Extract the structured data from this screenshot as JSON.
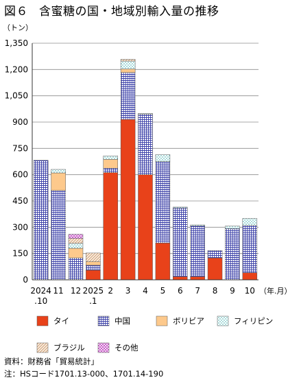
{
  "title": {
    "figure": "図６",
    "text": "含蜜糖の国・地域別輸入量の推移"
  },
  "chart_data": {
    "type": "bar",
    "stacked": true,
    "unit_label": "（トン）",
    "x_unit_label": "（年.月）",
    "ylim": [
      0,
      1350
    ],
    "yticks": [
      0,
      150,
      300,
      450,
      600,
      750,
      900,
      1050,
      1200,
      1350
    ],
    "ytick_labels": [
      "0",
      "150",
      "300",
      "450",
      "600",
      "750",
      "900",
      "1,050",
      "1,200",
      "1,350"
    ],
    "grid": true,
    "categories": [
      [
        "2024",
        ".10"
      ],
      [
        "11"
      ],
      [
        "12"
      ],
      [
        "2025",
        ".1"
      ],
      [
        "2"
      ],
      [
        "3"
      ],
      [
        "4"
      ],
      [
        "5"
      ],
      [
        "6"
      ],
      [
        "7"
      ],
      [
        "8"
      ],
      [
        "9"
      ],
      [
        "10"
      ]
    ],
    "series": [
      {
        "name": "タイ",
        "color": "#e8421a",
        "pattern": "solid",
        "values": [
          0,
          0,
          0,
          55,
          612,
          915,
          600,
          210,
          18,
          18,
          125,
          0,
          40
        ]
      },
      {
        "name": "中国",
        "color": "#3a3fa8",
        "pattern": "grid",
        "values": [
          682,
          510,
          125,
          28,
          25,
          268,
          345,
          465,
          392,
          290,
          42,
          292,
          270
        ]
      },
      {
        "name": "ボリビア",
        "color": "#fdc98c",
        "pattern": "solid",
        "values": [
          0,
          100,
          55,
          20,
          50,
          20,
          0,
          0,
          0,
          0,
          0,
          0,
          0
        ]
      },
      {
        "name": "フィリピン",
        "color": "#2aa7a7",
        "pattern": "dots",
        "values": [
          0,
          20,
          28,
          0,
          20,
          45,
          5,
          40,
          5,
          5,
          0,
          15,
          40
        ]
      },
      {
        "name": "ブラジル",
        "color": "#c8956a",
        "pattern": "diagonal",
        "values": [
          0,
          0,
          28,
          50,
          0,
          10,
          0,
          0,
          0,
          0,
          0,
          0,
          0
        ]
      },
      {
        "name": "その他",
        "color": "#c040c0",
        "pattern": "crosshatch",
        "values": [
          0,
          0,
          24,
          0,
          0,
          0,
          0,
          0,
          0,
          0,
          0,
          0,
          0
        ]
      }
    ]
  },
  "source": {
    "line1": "資料：財務省「貿易統計」",
    "line2": "注：HSコード1701.13-000、1701.14-190"
  }
}
